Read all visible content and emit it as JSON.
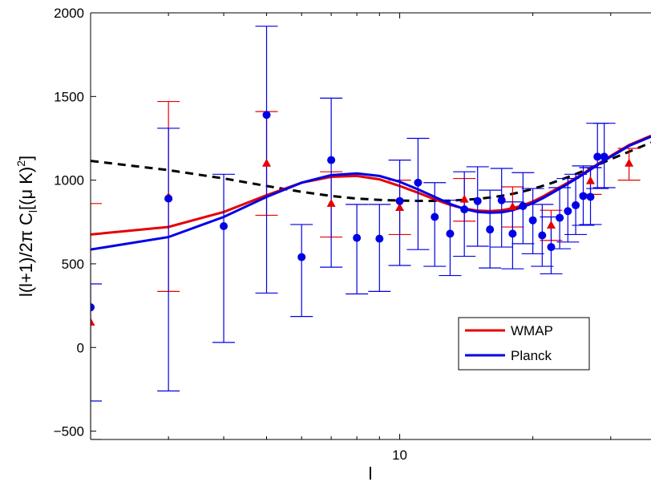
{
  "chart_data": {
    "type": "line",
    "xscale": "log",
    "xlim": [
      2,
      37
    ],
    "ylim": [
      -550,
      2000
    ],
    "xlabel": "l",
    "ylabel": "l(l+1)/2π C_l[(μ K)^2]",
    "ylabel_parts": {
      "main": "l(l+1)/2π C",
      "sub": "l",
      "bracket": "[(μ K)",
      "sup": "2",
      "close": "]"
    },
    "xticks": [
      10
    ],
    "xtick_labels": [
      "10"
    ],
    "yticks": [
      -500,
      0,
      500,
      1000,
      1500,
      2000
    ],
    "ytick_labels": [
      "−500",
      "0",
      "500",
      "1000",
      "1500",
      "2000"
    ],
    "legend_position": "lower-right",
    "series": [
      {
        "name": "WMAP",
        "color": "#e60000",
        "model_line": {
          "x": [
            2,
            3,
            4,
            5,
            6,
            7,
            8,
            9,
            10,
            11,
            12,
            13,
            14,
            15,
            16,
            17,
            18,
            19,
            20,
            21,
            22,
            24,
            26,
            28,
            30,
            33,
            37
          ],
          "y": [
            675,
            720,
            810,
            910,
            985,
            1020,
            1025,
            1005,
            965,
            925,
            885,
            852,
            830,
            818,
            815,
            820,
            832,
            850,
            872,
            900,
            930,
            985,
            1040,
            1095,
            1145,
            1210,
            1265
          ]
        },
        "points": {
          "x": [
            2,
            3,
            5,
            7,
            10,
            14,
            18,
            22,
            27,
            33
          ],
          "y": [
            150,
            900,
            1100,
            860,
            835,
            885,
            840,
            730,
            995,
            1100
          ],
          "err_low": [
            -550,
            335,
            790,
            660,
            675,
            755,
            720,
            640,
            915,
            1000
          ],
          "err_high": [
            860,
            1470,
            1410,
            1050,
            1000,
            1010,
            960,
            820,
            1075,
            1190
          ]
        }
      },
      {
        "name": "Planck",
        "color": "#0000e6",
        "model_line": {
          "x": [
            2,
            3,
            4,
            5,
            6,
            7,
            8,
            9,
            10,
            11,
            12,
            13,
            14,
            15,
            16,
            17,
            18,
            19,
            20,
            21,
            22,
            24,
            26,
            28,
            30,
            33,
            37
          ],
          "y": [
            585,
            660,
            780,
            900,
            985,
            1030,
            1040,
            1025,
            990,
            945,
            900,
            858,
            828,
            810,
            805,
            808,
            820,
            840,
            862,
            890,
            920,
            978,
            1035,
            1090,
            1140,
            1205,
            1260
          ]
        },
        "points": {
          "x": [
            2,
            3,
            4,
            5,
            6,
            7,
            8,
            9,
            10,
            11,
            12,
            13,
            14,
            15,
            16,
            17,
            18,
            19,
            20,
            21,
            22,
            23,
            24,
            25,
            26,
            27,
            28,
            29
          ],
          "y": [
            240,
            890,
            725,
            1390,
            540,
            1120,
            655,
            650,
            875,
            985,
            780,
            680,
            825,
            875,
            705,
            880,
            680,
            845,
            760,
            670,
            600,
            775,
            815,
            850,
            905,
            900,
            1140,
            1140
          ],
          "err_low": [
            -320,
            -260,
            30,
            325,
            185,
            480,
            320,
            335,
            490,
            585,
            485,
            430,
            545,
            605,
            475,
            600,
            470,
            620,
            560,
            485,
            440,
            590,
            630,
            675,
            730,
            735,
            950,
            955
          ],
          "err_high": [
            380,
            1310,
            1035,
            1920,
            735,
            1490,
            855,
            855,
            1120,
            1250,
            985,
            880,
            1050,
            1080,
            940,
            1070,
            870,
            1045,
            950,
            855,
            780,
            955,
            1010,
            1035,
            1085,
            1075,
            1340,
            1340
          ]
        }
      },
      {
        "name": "",
        "color": "#000000",
        "style": "dashed",
        "model_line": {
          "x": [
            2,
            3,
            4,
            5,
            6,
            7,
            8,
            9,
            10,
            11,
            12,
            13,
            14,
            15,
            16,
            17,
            18,
            19,
            20,
            21,
            22,
            24,
            26,
            28,
            30,
            33,
            37
          ],
          "y": [
            1115,
            1060,
            1010,
            965,
            930,
            905,
            890,
            882,
            878,
            876,
            876,
            878,
            882,
            888,
            896,
            906,
            918,
            932,
            948,
            965,
            982,
            1018,
            1055,
            1090,
            1125,
            1170,
            1225
          ]
        }
      }
    ]
  }
}
